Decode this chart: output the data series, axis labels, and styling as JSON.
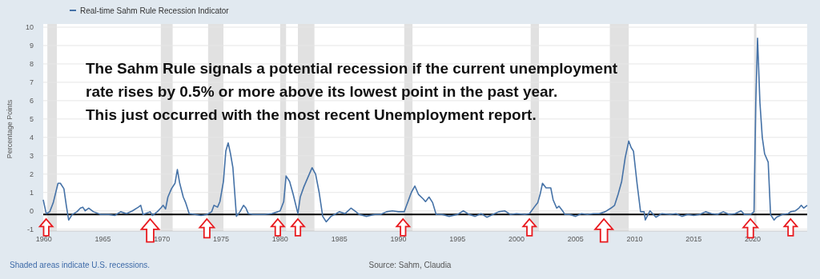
{
  "chart_data": {
    "type": "line",
    "ylabel": "Percentage Points",
    "x": [
      1959.95,
      1960.2,
      1960.5,
      1960.8,
      1961.2,
      1961.4,
      1961.7,
      1961.9,
      1962.1,
      1962.4,
      1962.8,
      1963.1,
      1963.3,
      1963.5,
      1963.8,
      1964.2,
      1964.8,
      1965.5,
      1966,
      1966.5,
      1967,
      1967.5,
      1968,
      1968.2,
      1968.4,
      1969,
      1969.2,
      1969.6,
      1969.9,
      1970.1,
      1970.3,
      1970.5,
      1970.8,
      1971.1,
      1971.3,
      1971.5,
      1971.8,
      1972,
      1972.3,
      1972.8,
      1973.3,
      1973.8,
      1974.2,
      1974.4,
      1974.7,
      1974.9,
      1975.2,
      1975.4,
      1975.6,
      1975.8,
      1976,
      1976.3,
      1976.6,
      1976.9,
      1977.1,
      1977.3,
      1977.7,
      1978.2,
      1978.7,
      1979.3,
      1979.8,
      1980,
      1980.3,
      1980.5,
      1980.8,
      1981.1,
      1981.5,
      1981.7,
      1982,
      1982.5,
      1982.7,
      1983,
      1983.3,
      1983.6,
      1983.9,
      1984.3,
      1984.6,
      1985,
      1985.5,
      1986,
      1986.3,
      1986.7,
      1987.3,
      1988,
      1988.5,
      1989,
      1989.5,
      1990,
      1990.5,
      1990.7,
      1991.1,
      1991.4,
      1991.7,
      1992.1,
      1992.3,
      1992.6,
      1992.9,
      1993.2,
      1993.7,
      1994.3,
      1995,
      1995.5,
      1996,
      1996.5,
      1997,
      1997.5,
      1998,
      1998.5,
      1999,
      1999.5,
      2000,
      2000.7,
      2001.1,
      2001.5,
      2001.8,
      2002,
      2002.2,
      2002.5,
      2002.9,
      2003.1,
      2003.4,
      2003.6,
      2003.9,
      2004.1,
      2004.5,
      2005,
      2005.5,
      2006,
      2006.5,
      2007,
      2007.5,
      2008,
      2008.3,
      2008.6,
      2008.9,
      2009.2,
      2009.5,
      2009.7,
      2009.9,
      2010.2,
      2010.5,
      2010.8,
      2010.9,
      2011.3,
      2011.8,
      2012.3,
      2013,
      2013.5,
      2014,
      2014.5,
      2015,
      2015.5,
      2016,
      2016.5,
      2017,
      2017.5,
      2018,
      2018.5,
      2019,
      2019.3,
      2019.8,
      2020.1,
      2020.25,
      2020.4,
      2020.6,
      2020.8,
      2021,
      2021.3,
      2021.5,
      2021.8,
      2022,
      2022.5,
      2023,
      2023.2,
      2023.6,
      2023.9,
      2024.1,
      2024.3,
      2024.6
    ],
    "series": [
      {
        "name": "Real-time Sahm Rule Recession Indicator",
        "color": "#4572a7",
        "values": [
          0.6,
          -0.15,
          -0.05,
          0.45,
          1.5,
          1.5,
          1.2,
          0.3,
          -0.5,
          -0.2,
          -0.05,
          0.15,
          0.2,
          0,
          0.15,
          -0.05,
          -0.2,
          -0.2,
          -0.25,
          -0.05,
          -0.15,
          0,
          0.2,
          0.3,
          -0.2,
          -0.05,
          -0.25,
          -0.05,
          0.15,
          0.3,
          0.1,
          0.75,
          1.2,
          1.5,
          2.25,
          1.5,
          0.75,
          0.45,
          -0.15,
          -0.2,
          -0.25,
          -0.2,
          -0.05,
          0.3,
          0.2,
          0.5,
          1.6,
          3.25,
          3.7,
          3.1,
          2.35,
          -0.3,
          -0.05,
          0.3,
          0.15,
          -0.15,
          -0.2,
          -0.2,
          -0.2,
          -0.15,
          -0.05,
          0,
          0.5,
          1.9,
          1.6,
          0.9,
          -0.15,
          0.75,
          1.3,
          2.05,
          2.35,
          2,
          1,
          -0.3,
          -0.6,
          -0.3,
          -0.2,
          -0.05,
          -0.15,
          0.15,
          0,
          -0.2,
          -0.3,
          -0.2,
          -0.2,
          -0.05,
          0,
          -0.05,
          -0.05,
          0.3,
          1,
          1.35,
          0.9,
          0.65,
          0.5,
          0.75,
          0.45,
          -0.2,
          -0.2,
          -0.3,
          -0.2,
          0,
          -0.2,
          -0.3,
          -0.15,
          -0.35,
          -0.2,
          -0.05,
          0,
          -0.2,
          -0.15,
          -0.2,
          -0.15,
          0.2,
          0.45,
          0.9,
          1.5,
          1.25,
          1.25,
          0.6,
          0.15,
          0.25,
          0,
          -0.2,
          -0.2,
          -0.3,
          -0.15,
          -0.2,
          -0.15,
          -0.15,
          -0.05,
          0.15,
          0.3,
          0.9,
          1.6,
          2.9,
          3.8,
          3.45,
          3.25,
          1.5,
          -0.05,
          -0.05,
          -0.5,
          0,
          -0.35,
          -0.15,
          -0.2,
          -0.15,
          -0.3,
          -0.2,
          -0.25,
          -0.2,
          -0.05,
          -0.15,
          -0.2,
          -0.05,
          -0.2,
          -0.15,
          0,
          -0.2,
          -0.2,
          -0.05,
          5.9,
          9.4,
          5.9,
          4,
          3.1,
          2.65,
          -0.2,
          -0.5,
          -0.35,
          -0.2,
          -0.15,
          -0.05,
          0,
          0.15,
          0.3,
          0.15,
          0.3
        ]
      }
    ],
    "xlim": [
      1959.95,
      2024.6
    ],
    "xticks": [
      1960,
      1965,
      1970,
      1975,
      1980,
      1985,
      1990,
      1995,
      2000,
      2005,
      2010,
      2015,
      2020
    ],
    "ylim": [
      -1.1,
      10
    ],
    "yticks": [
      -1,
      0,
      1,
      2,
      3,
      4,
      5,
      6,
      7,
      8,
      9,
      10
    ],
    "grid": "y",
    "legend": "top left",
    "marker": "none",
    "line_style": "solid",
    "bands": [
      {
        "axis": "x",
        "from": 1960.3,
        "to": 1961.1,
        "color": "#e1e1e1"
      },
      {
        "axis": "x",
        "from": 1969.9,
        "to": 1970.9,
        "color": "#e1e1e1"
      },
      {
        "axis": "x",
        "from": 1973.9,
        "to": 1975.2,
        "color": "#e1e1e1"
      },
      {
        "axis": "x",
        "from": 1980,
        "to": 1980.5,
        "color": "#e1e1e1"
      },
      {
        "axis": "x",
        "from": 1981.5,
        "to": 1982.9,
        "color": "#e1e1e1"
      },
      {
        "axis": "x",
        "from": 1990.5,
        "to": 1991.2,
        "color": "#e1e1e1"
      },
      {
        "axis": "x",
        "from": 2001.2,
        "to": 2001.9,
        "color": "#e1e1e1"
      },
      {
        "axis": "x",
        "from": 2007.9,
        "to": 2009.5,
        "color": "#e1e1e1"
      },
      {
        "axis": "x",
        "from": 2020.1,
        "to": 2020.3,
        "color": "#e1e1e1"
      }
    ],
    "ref_lines": [
      {
        "axis": "y",
        "value": -0.2,
        "color": "#000000",
        "line_style": "solid"
      }
    ],
    "annotations": [
      "The Sahm Rule signals a potential recession if the current unemployment\nrate rises by 0.5% or more above its lowest point in the past year.\nThis just occurred with the most recent Unemployment report.",
      "Shaded areas indicate U.S. recessions.",
      "Source: Sahm, Claudia"
    ]
  }
}
